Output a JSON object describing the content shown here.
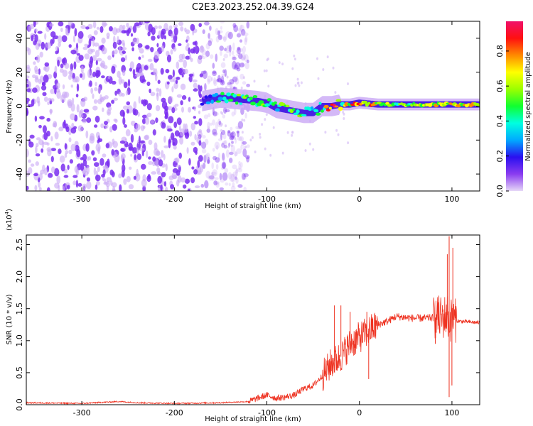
{
  "title": "C2E3.2023.252.04.39.G24",
  "chart_data": [
    {
      "type": "heatmap",
      "xlabel": "Height of straight line (km)",
      "ylabel": "Frequency (Hz)",
      "xlim": [
        -360,
        130
      ],
      "ylim": [
        -50,
        50
      ],
      "xticks": [
        -300,
        -200,
        -100,
        0,
        100
      ],
      "yticks": [
        -40,
        -20,
        0,
        20,
        40
      ],
      "colorbar": {
        "label": "Normalized spectral amplitude",
        "ticks": [
          "0.0",
          "0.2",
          "0.4",
          "0.6",
          "0.8"
        ],
        "range": [
          0,
          0.97
        ],
        "colors": [
          "#e6d8f7",
          "#8a3cf0",
          "#2a10f0",
          "#00aaff",
          "#00ffe0",
          "#10ff30",
          "#9cff00",
          "#ffff00",
          "#ff8a00",
          "#ff1010",
          "#f0106a"
        ]
      },
      "noise_region": {
        "x_range": [
          -360,
          -140
        ],
        "freq_spread": 50
      },
      "ridge": {
        "x": [
          -170,
          -150,
          -130,
          -110,
          -100,
          -90,
          -80,
          -70,
          -60,
          -50,
          -40,
          -30,
          -20,
          -10,
          0,
          20,
          40,
          60,
          80,
          100,
          130
        ],
        "freq": [
          3,
          5,
          4,
          3,
          2,
          -1,
          -2,
          -3,
          -4,
          -4,
          0,
          0,
          1,
          1,
          2,
          1,
          1,
          1,
          1,
          1,
          1
        ],
        "amplitude": [
          0.15,
          0.4,
          0.45,
          0.5,
          0.5,
          0.45,
          0.5,
          0.5,
          0.45,
          0.35,
          0.5,
          0.9,
          0.6,
          0.65,
          0.9,
          0.6,
          0.55,
          0.55,
          0.6,
          0.7,
          0.6
        ]
      }
    },
    {
      "type": "line",
      "xlabel": "Height of straight line (km)",
      "ylabel": "SNR (10 * v/v)",
      "y_multiplier": "(x10",
      "y_multiplier_exp": "4",
      "y_multiplier_close": ")",
      "xlim": [
        -360,
        130
      ],
      "ylim": [
        0,
        2.65
      ],
      "xticks": [
        -300,
        -200,
        -100,
        0,
        100
      ],
      "yticks": [
        "0.0",
        "0.5",
        "1.0",
        "1.5",
        "2.0",
        "2.5"
      ],
      "color": "#ee3322",
      "series": [
        {
          "x": [
            -360,
            -300,
            -260,
            -240,
            -200,
            -150,
            -120,
            -110,
            -100,
            -90,
            -80,
            -70,
            -60,
            -50,
            -40,
            -30,
            -20,
            -10,
            0,
            10,
            20,
            30,
            40,
            50,
            60,
            70,
            80,
            90,
            95,
            97,
            100,
            105,
            110,
            130
          ],
          "values": [
            0.03,
            0.02,
            0.05,
            0.03,
            0.02,
            0.03,
            0.05,
            0.1,
            0.15,
            0.1,
            0.12,
            0.15,
            0.25,
            0.3,
            0.45,
            0.65,
            0.75,
            0.95,
            1.05,
            1.15,
            1.25,
            1.3,
            1.38,
            1.36,
            1.35,
            1.35,
            1.36,
            1.36,
            1.4,
            1.3,
            1.34,
            1.31,
            1.3,
            1.28
          ],
          "spikes": [
            {
              "x": -27,
              "y": 1.55
            },
            {
              "x": -20,
              "y": 1.55
            },
            {
              "x": -10,
              "y": 1.45
            },
            {
              "x": 8,
              "y": 1.45
            },
            {
              "x": 10,
              "y": 0.4
            },
            {
              "x": 82,
              "y": 0.95
            },
            {
              "x": 85,
              "y": 1.6
            },
            {
              "x": 95,
              "y": 2.35
            },
            {
              "x": 97,
              "y": 2.63
            },
            {
              "x": 97,
              "y": 0.12
            },
            {
              "x": 100,
              "y": 0.3
            },
            {
              "x": 101,
              "y": 2.45
            }
          ]
        }
      ]
    }
  ]
}
